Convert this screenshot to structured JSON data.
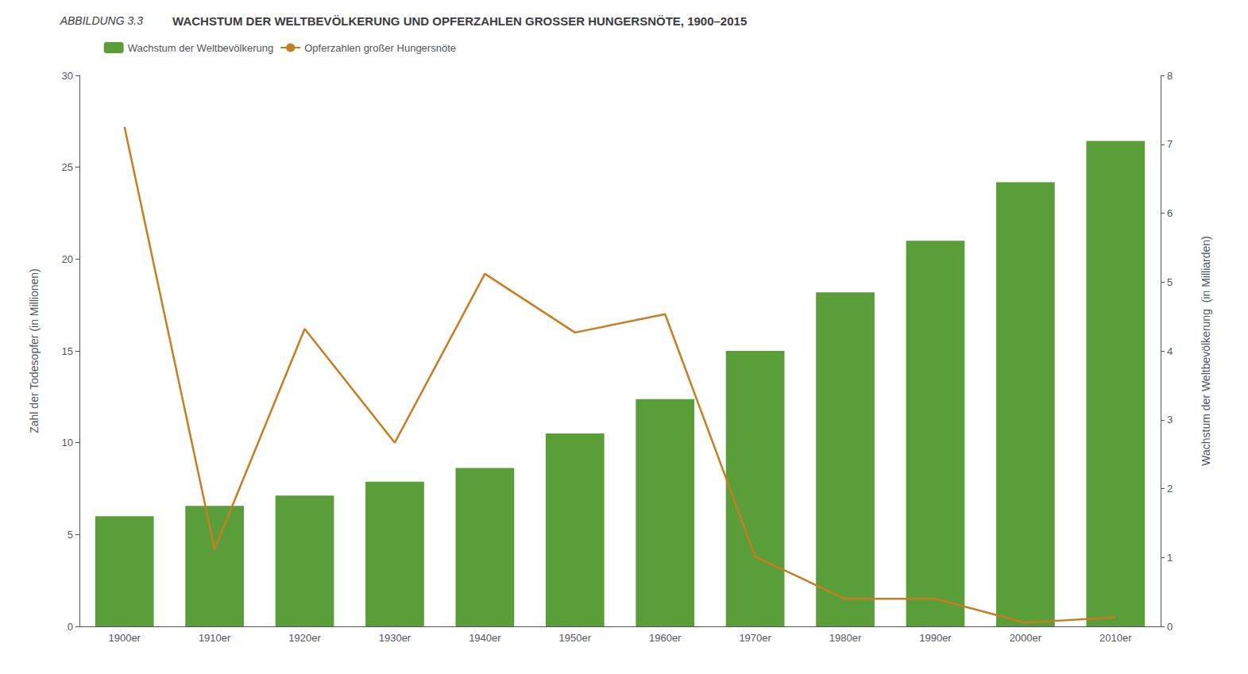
{
  "chart_data": {
    "type": "bar",
    "title": "WACHSTUM DER WELTBEVÖLKERUNG UND OPFERZAHLEN GROSSER HUNGERSNÖTE, 1900–2015",
    "annotations": [
      {
        "text": "ABBILDUNG 3.3"
      }
    ],
    "categories": [
      "1900er",
      "1910er",
      "1920er",
      "1930er",
      "1940er",
      "1950er",
      "1960er",
      "1970er",
      "1980er",
      "1990er",
      "2000er",
      "2010er"
    ],
    "series": [
      {
        "name": "Wachstum der Weltbevölkerung",
        "type": "bar",
        "axis": "y2",
        "color": "#5a9e3a",
        "values": [
          1.6,
          1.75,
          1.9,
          2.1,
          2.3,
          2.8,
          3.3,
          4.0,
          4.85,
          5.6,
          6.45,
          7.05
        ]
      },
      {
        "name": "Opferzahlen großer Hungersnöte",
        "type": "line",
        "color": "#c87d20",
        "values": [
          27.2,
          4.2,
          16.2,
          10.0,
          19.2,
          16.0,
          17.0,
          3.8,
          1.5,
          1.5,
          0.2,
          0.5
        ]
      }
    ],
    "ylabel": "Zahl der Todesopfer (in Millionen)",
    "y2label": "Wachstum der Weltbevölkerung  (in Milliarden)",
    "ylim": [
      0,
      30
    ],
    "yticks": [
      0,
      5,
      10,
      15,
      20,
      25,
      30
    ],
    "y2lim": [
      0,
      8
    ],
    "y2ticks": [
      0,
      1,
      2,
      3,
      4,
      5,
      6,
      7,
      8
    ],
    "grid": false,
    "legend": "upper left"
  }
}
